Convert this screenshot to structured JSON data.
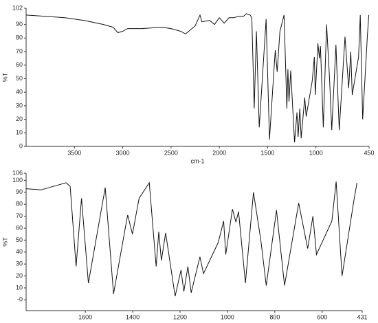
{
  "chart_data": [
    {
      "type": "line",
      "y_label": "%T",
      "x_label": "cm-1",
      "color": "#111111",
      "xlim": [
        4000,
        450
      ],
      "xticks": [
        3500,
        3000,
        2500,
        2000,
        1500,
        1000,
        450
      ],
      "ylim": [
        0,
        102
      ],
      "yticks": [
        102,
        90,
        80,
        70,
        60,
        50,
        40,
        30,
        20,
        10,
        0
      ],
      "x": [
        4000,
        3800,
        3600,
        3400,
        3200,
        3100,
        3050,
        3000,
        2950,
        2800,
        2600,
        2500,
        2400,
        2350,
        2300,
        2250,
        2200,
        2180,
        2100,
        2050,
        2000,
        1950,
        1900,
        1850,
        1800,
        1750,
        1720,
        1681,
        1664,
        1639,
        1616,
        1587,
        1516,
        1481,
        1427,
        1421,
        1401,
        1373,
        1330,
        1301,
        1290,
        1279,
        1261,
        1221,
        1196,
        1184,
        1167,
        1153,
        1116,
        1101,
        1039,
        1016,
        1007,
        979,
        964,
        953,
        924,
        890,
        859,
        836,
        793,
        759,
        699,
        661,
        639,
        624,
        559,
        541,
        516,
        467,
        453
      ],
      "series": [
        {
          "values": [
            97,
            96,
            95,
            93,
            90,
            88,
            84,
            85,
            87,
            87,
            88,
            87,
            85,
            83,
            86,
            89,
            97,
            92,
            93,
            90,
            95,
            91,
            95,
            95,
            96,
            96,
            98,
            97,
            95,
            28,
            85,
            14,
            94,
            5,
            65,
            71,
            55,
            85,
            97,
            28,
            57,
            33,
            56,
            3,
            25,
            7,
            28,
            6,
            36,
            22,
            48,
            66,
            38,
            76,
            65,
            74,
            14,
            90,
            50,
            12,
            75,
            12,
            81,
            43,
            70,
            38,
            66,
            97,
            20,
            82,
            97
          ]
        }
      ]
    },
    {
      "type": "line",
      "y_label": "%T",
      "x_label": "cm-1",
      "color": "#111111",
      "xlim": [
        1850,
        431
      ],
      "xticks": [
        1600,
        1400,
        1200,
        1000,
        800,
        600,
        431
      ],
      "ylim": [
        -9,
        106
      ],
      "yticks": [
        106,
        100,
        90,
        80,
        70,
        60,
        50,
        40,
        30,
        20,
        10,
        {
          "value": 0,
          "label": "-0"
        }
      ],
      "x": [
        1850,
        1787,
        1681,
        1664,
        1639,
        1616,
        1587,
        1516,
        1481,
        1427,
        1421,
        1401,
        1373,
        1330,
        1301,
        1290,
        1279,
        1261,
        1221,
        1196,
        1184,
        1167,
        1153,
        1116,
        1101,
        1039,
        1016,
        1007,
        979,
        964,
        953,
        924,
        890,
        859,
        836,
        793,
        759,
        699,
        661,
        639,
        624,
        559,
        541,
        516,
        467,
        453
      ],
      "series": [
        {
          "values": [
            93,
            92,
            98,
            95,
            28,
            85,
            14,
            94,
            5,
            65,
            71,
            55,
            85,
            98,
            28,
            57,
            33,
            56,
            3,
            25,
            7,
            28,
            6,
            36,
            22,
            48,
            66,
            38,
            76,
            65,
            74,
            14,
            90,
            50,
            12,
            75,
            12,
            81,
            43,
            70,
            38,
            66,
            99,
            20,
            82,
            98
          ]
        }
      ]
    }
  ]
}
